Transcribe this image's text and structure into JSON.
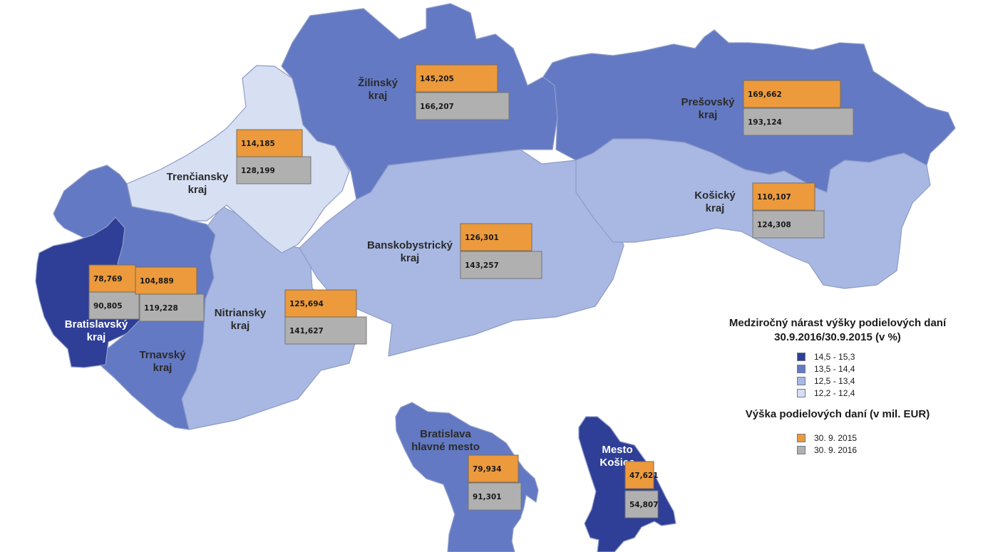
{
  "colors": {
    "class_1": "#2f3e96",
    "class_2": "#6379c3",
    "class_3": "#a8b8e2",
    "class_4": "#d7e0f3",
    "series_2015": "#ec9a3c",
    "series_2016": "#b0b0b0"
  },
  "regions": [
    {
      "id": "bratislavsky",
      "name_lines": [
        "Bratislavský",
        "kraj"
      ],
      "class": 1,
      "value_2015": "78,769",
      "value_2016": "90,805"
    },
    {
      "id": "trnavsky",
      "name_lines": [
        "Trnavský",
        "kraj"
      ],
      "class": 2,
      "value_2015": "104,889",
      "value_2016": "119,228"
    },
    {
      "id": "trenciansky",
      "name_lines": [
        "Trenčiansky",
        "kraj"
      ],
      "class": 4,
      "value_2015": "114,185",
      "value_2016": "128,199"
    },
    {
      "id": "nitriansky",
      "name_lines": [
        "Nitriansky",
        "kraj"
      ],
      "class": 3,
      "value_2015": "125,694",
      "value_2016": "141,627"
    },
    {
      "id": "zilinsky",
      "name_lines": [
        "Žilinský",
        "kraj"
      ],
      "class": 2,
      "value_2015": "145,205",
      "value_2016": "166,207"
    },
    {
      "id": "banskobystricky",
      "name_lines": [
        "Banskobystrický",
        "kraj"
      ],
      "class": 3,
      "value_2015": "126,301",
      "value_2016": "143,257"
    },
    {
      "id": "presovsky",
      "name_lines": [
        "Prešovský",
        "kraj"
      ],
      "class": 2,
      "value_2015": "169,662",
      "value_2016": "193,124"
    },
    {
      "id": "kosicky",
      "name_lines": [
        "Košický",
        "kraj"
      ],
      "class": 3,
      "value_2015": "110,107",
      "value_2016": "124,308"
    },
    {
      "id": "bratislava-mesto",
      "name_lines": [
        "Bratislava",
        "hlavné mesto"
      ],
      "class": 2,
      "value_2015": "79,934",
      "value_2016": "91,301"
    },
    {
      "id": "kosice-mesto",
      "name_lines": [
        "Mesto",
        "Košice"
      ],
      "class": 1,
      "value_2015": "47,621",
      "value_2016": "54,807"
    }
  ],
  "legend": {
    "growth_title_line1": "Medziročný nárast výšky podielových daní",
    "growth_title_line2": "30.9.2016/30.9.2015 (v %)",
    "growth_classes": [
      "14,5 - 15,3",
      "13,5 - 14,4",
      "12,5 - 13,4",
      "12,2 - 12,4"
    ],
    "amount_title": "Výška podielových daní (v mil. EUR)",
    "amount_series": [
      "30. 9. 2015",
      "30. 9. 2016"
    ]
  }
}
